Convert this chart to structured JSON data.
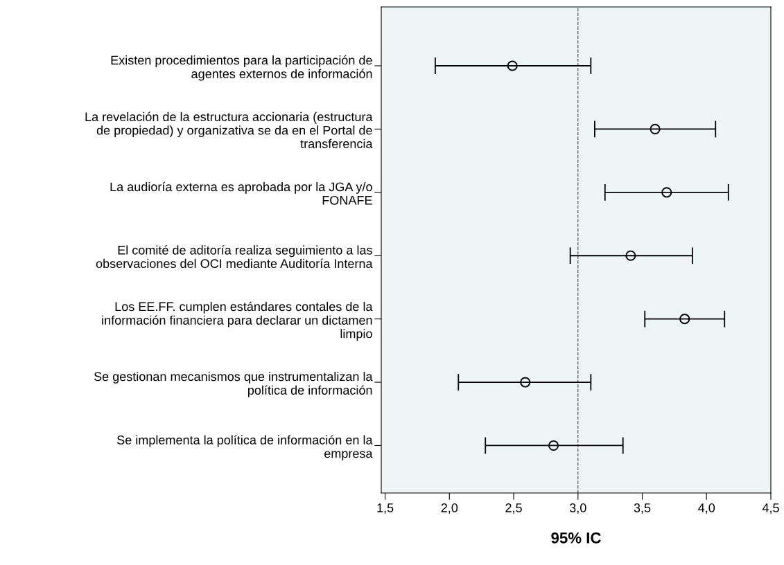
{
  "chart_data": {
    "type": "scatter",
    "orientation": "horizontal",
    "xlabel": "95% IC",
    "categories": [
      "Existen procedimientos para la participación de\nagentes externos de información",
      "La revelación de la estructura accionaria (estructura\nde propiedad) y organizativa se da en el Portal de\ntransferencia",
      "La audioría externa es aprobada por la JGA y/o\nFONAFE",
      "El comité de aditoría realiza seguimiento a las\nobservaciones del OCI mediante Auditoría Interna",
      "Los EE.FF. cumplen estándares contales de la\ninformación financiera para declarar un dictamen\nlimpio",
      "Se gestionan mecanismos que instrumentalizan la\npolítica de información",
      "Se implementa la política de información en la\nempresa"
    ],
    "values": [
      2.49,
      3.6,
      3.69,
      3.41,
      3.83,
      2.59,
      2.81
    ],
    "errors": [
      [
        1.89,
        3.1
      ],
      [
        3.13,
        4.07
      ],
      [
        3.21,
        4.17
      ],
      [
        2.94,
        3.89
      ],
      [
        3.52,
        4.14
      ],
      [
        2.07,
        3.1
      ],
      [
        2.28,
        3.35
      ]
    ],
    "color": "#000000",
    "marker": "circle",
    "xlim": [
      1.47,
      4.5
    ],
    "xticks": [
      {
        "value": 1.5,
        "label": "1,5"
      },
      {
        "value": 2.0,
        "label": "2,0"
      },
      {
        "value": 2.5,
        "label": "2,5"
      },
      {
        "value": 3.0,
        "label": "3,0"
      },
      {
        "value": 3.5,
        "label": "3,5"
      },
      {
        "value": 4.0,
        "label": "4,0"
      },
      {
        "value": 4.5,
        "label": "4,5"
      }
    ],
    "ref_lines": [
      {
        "axis": "x",
        "value": 3.0,
        "line_style": "dashed",
        "color": "#555555"
      }
    ],
    "grid": false
  }
}
